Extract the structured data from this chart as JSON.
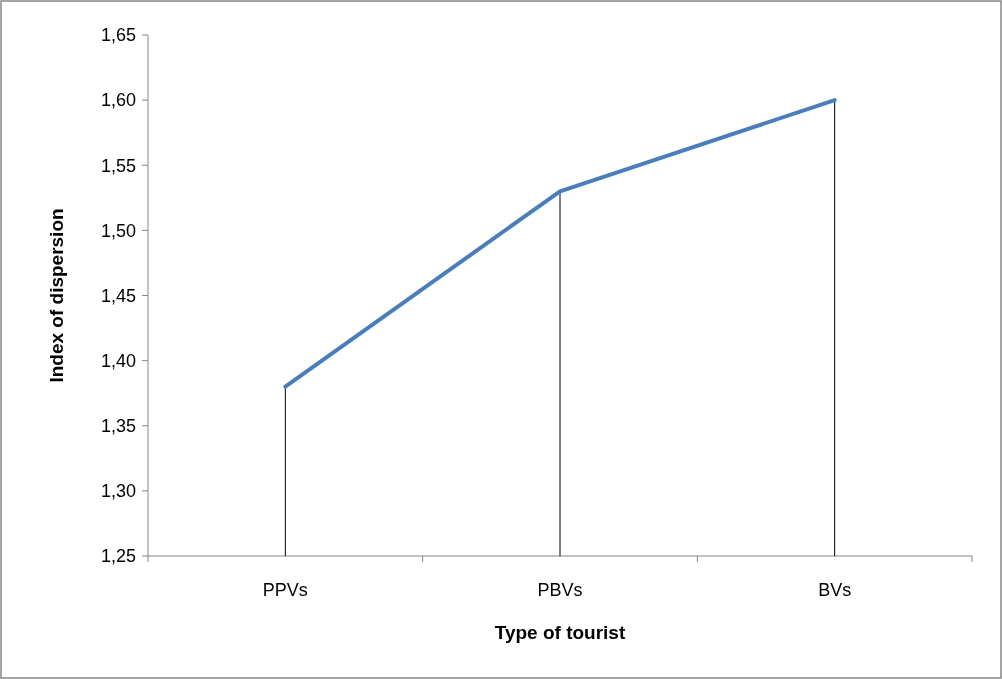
{
  "chart_data": {
    "type": "line",
    "xlabel": "Type of tourist",
    "ylabel": "Index of dispersion",
    "categories": [
      "PPVs",
      "PBVs",
      "BVs"
    ],
    "series": [
      {
        "color": "#4a7ebb",
        "values": [
          1.38,
          1.53,
          1.6
        ]
      }
    ],
    "ylim": [
      1.25,
      1.65
    ],
    "yticks": [
      {
        "value": 1.25,
        "label": "1,25"
      },
      {
        "value": 1.3,
        "label": "1,30"
      },
      {
        "value": 1.35,
        "label": "1,35"
      },
      {
        "value": 1.4,
        "label": "1,40"
      },
      {
        "value": 1.45,
        "label": "1,45"
      },
      {
        "value": 1.5,
        "label": "1,50"
      },
      {
        "value": 1.55,
        "label": "1,55"
      },
      {
        "value": 1.6,
        "label": "1,60"
      },
      {
        "value": 1.65,
        "label": "1,65"
      }
    ],
    "marker": "none",
    "line_style": "solid"
  }
}
